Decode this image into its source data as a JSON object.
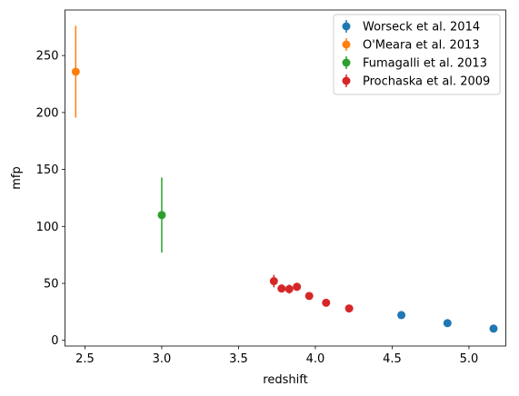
{
  "chart_data": {
    "type": "scatter",
    "title": "",
    "xlabel": "redshift",
    "ylabel": "mfp",
    "xlim": [
      2.37,
      5.24
    ],
    "ylim": [
      -5,
      290
    ],
    "xticks": [
      2.5,
      3.0,
      3.5,
      4.0,
      4.5,
      5.0
    ],
    "xtick_labels": [
      "2.5",
      "3.0",
      "3.5",
      "4.0",
      "4.5",
      "5.0"
    ],
    "yticks": [
      0,
      50,
      100,
      150,
      200,
      250
    ],
    "ytick_labels": [
      "0",
      "50",
      "100",
      "150",
      "200",
      "250"
    ],
    "grid": false,
    "legend_position": "top-right",
    "series": [
      {
        "name": "Worseck et al. 2014",
        "color": "#1f77b4",
        "points": [
          {
            "x": 4.56,
            "y": 22.2,
            "err": 2.3
          },
          {
            "x": 4.86,
            "y": 15.1,
            "err": 1.8
          },
          {
            "x": 5.16,
            "y": 10.3,
            "err": 1.6
          }
        ]
      },
      {
        "name": "O'Meara et al. 2013",
        "color": "#ff7f0e",
        "points": [
          {
            "x": 2.44,
            "y": 235.8,
            "err": 40.3
          }
        ]
      },
      {
        "name": "Fumagalli et al. 2013",
        "color": "#2ca02c",
        "points": [
          {
            "x": 3.0,
            "y": 110.0,
            "err": 33.0
          }
        ]
      },
      {
        "name": "Prochaska et al. 2009",
        "color": "#d62728",
        "points": [
          {
            "x": 3.73,
            "y": 52.0,
            "err": 5.5
          },
          {
            "x": 3.78,
            "y": 45.5,
            "err": 3.5
          },
          {
            "x": 3.83,
            "y": 45.0,
            "err": 4.0
          },
          {
            "x": 3.88,
            "y": 47.0,
            "err": 3.5
          },
          {
            "x": 3.96,
            "y": 39.0,
            "err": 3.0
          },
          {
            "x": 4.07,
            "y": 33.0,
            "err": 2.5
          },
          {
            "x": 4.22,
            "y": 28.0,
            "err": 2.0
          }
        ]
      }
    ]
  }
}
